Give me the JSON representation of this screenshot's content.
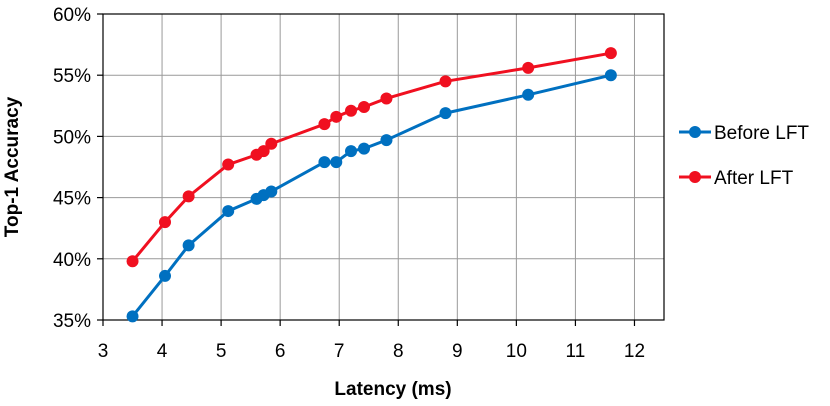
{
  "chart_data": {
    "type": "line",
    "xlabel": "Latency (ms)",
    "ylabel": "Top-1 Accuracy",
    "xlim": [
      3,
      12.5
    ],
    "ylim": [
      35,
      60
    ],
    "x_ticks": [
      "3",
      "4",
      "5",
      "6",
      "7",
      "8",
      "9",
      "10",
      "11",
      "12"
    ],
    "x_tick_values": [
      3,
      4,
      5,
      6,
      7,
      8,
      9,
      10,
      11,
      12
    ],
    "y_ticks": [
      "35%",
      "40%",
      "45%",
      "50%",
      "55%",
      "60%"
    ],
    "y_tick_values": [
      35,
      40,
      45,
      50,
      55,
      60
    ],
    "grid": true,
    "legend_position": "right",
    "series": [
      {
        "name": "Before LFT",
        "color": "#0070C0",
        "points": [
          [
            3.5,
            35.3
          ],
          [
            4.05,
            38.6
          ],
          [
            4.45,
            41.1
          ],
          [
            5.12,
            43.9
          ],
          [
            5.6,
            44.9
          ],
          [
            5.72,
            45.2
          ],
          [
            5.85,
            45.5
          ],
          [
            6.75,
            47.9
          ],
          [
            6.95,
            47.9
          ],
          [
            7.2,
            48.8
          ],
          [
            7.42,
            49.0
          ],
          [
            7.8,
            49.7
          ],
          [
            8.8,
            51.9
          ],
          [
            10.2,
            53.4
          ],
          [
            11.6,
            55.0
          ]
        ]
      },
      {
        "name": "After LFT",
        "color": "#F01020",
        "points": [
          [
            3.5,
            39.8
          ],
          [
            4.05,
            43.0
          ],
          [
            4.45,
            45.1
          ],
          [
            5.12,
            47.7
          ],
          [
            5.6,
            48.5
          ],
          [
            5.72,
            48.8
          ],
          [
            5.85,
            49.4
          ],
          [
            6.75,
            51.0
          ],
          [
            6.95,
            51.6
          ],
          [
            7.2,
            52.1
          ],
          [
            7.42,
            52.4
          ],
          [
            7.8,
            53.1
          ],
          [
            8.8,
            54.5
          ],
          [
            10.2,
            55.6
          ],
          [
            11.6,
            56.8
          ]
        ]
      }
    ]
  }
}
